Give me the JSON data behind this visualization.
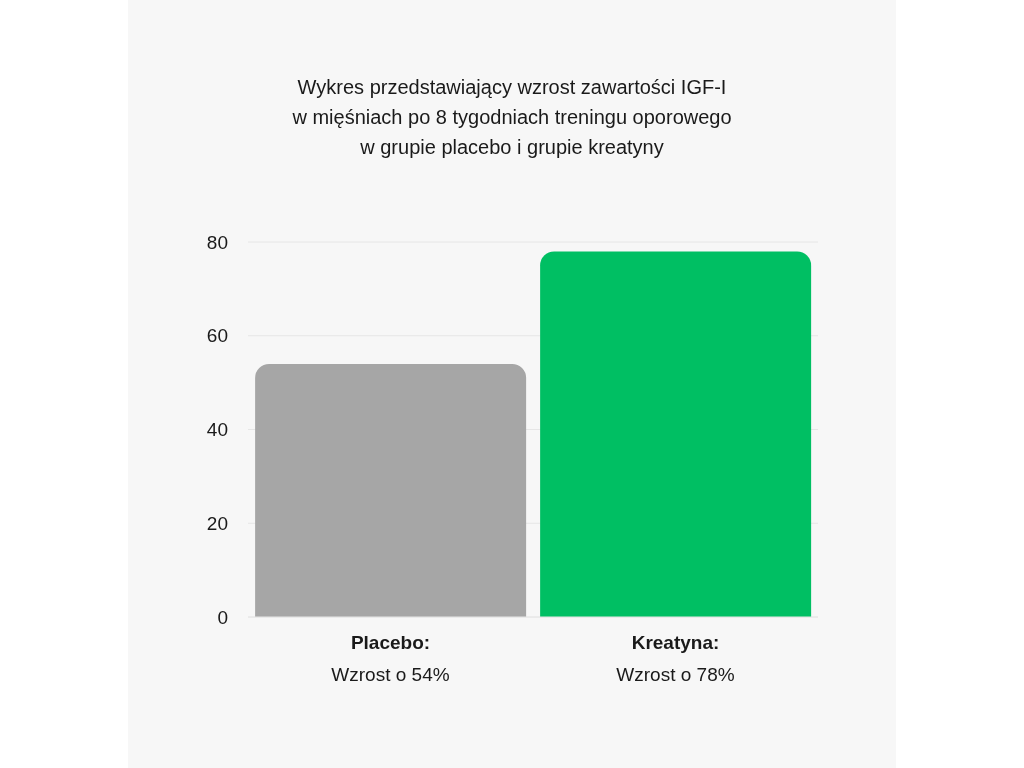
{
  "chart_data": {
    "type": "bar",
    "title": "Wykres przedstawiający wzrost zawartości IGF-I\nw mięśniach po 8 tygodniach treningu oporowego\nw grupie placebo i grupie kreatyny",
    "categories": [
      "Placebo:\nWzrost o 54%",
      "Kreatyna:\nWzrost o 78%"
    ],
    "values": [
      54,
      78
    ],
    "colors": [
      "#a6a6a6",
      "#00bf63"
    ],
    "ylim": [
      0,
      80
    ],
    "yticks": [
      0,
      20,
      40,
      60,
      80
    ],
    "grid": "y"
  }
}
